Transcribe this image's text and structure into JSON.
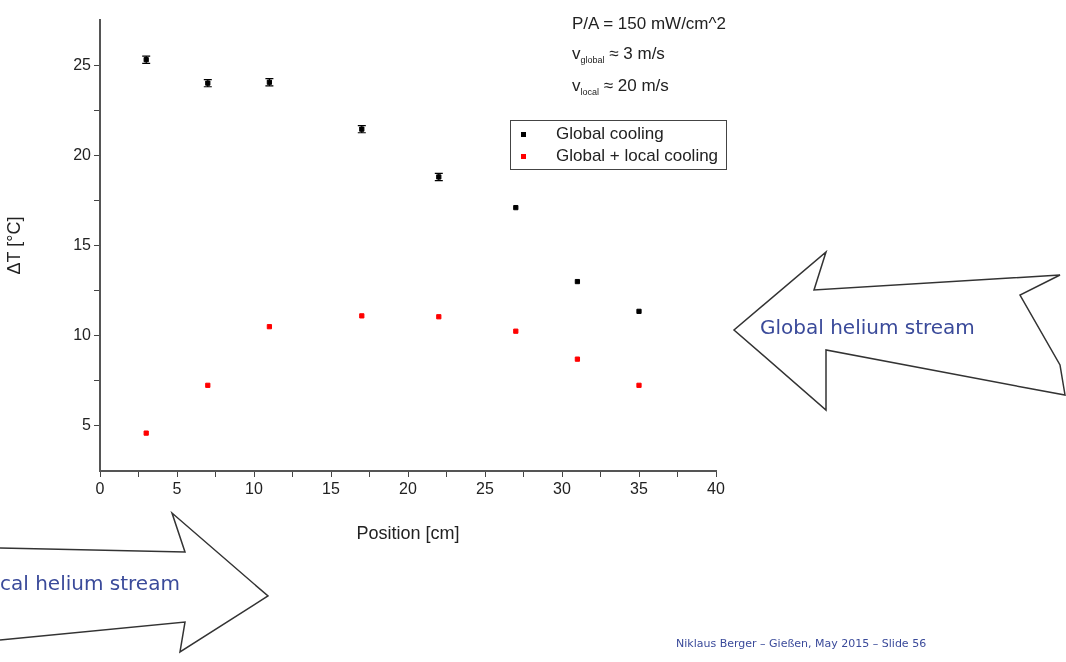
{
  "chart_data": {
    "type": "scatter",
    "xlabel": "Position [cm]",
    "ylabel": "ΔT [°C]",
    "x": [
      3,
      7,
      11,
      17,
      22,
      27,
      31,
      35
    ],
    "series": [
      {
        "name": "Global cooling",
        "color": "#000000",
        "values": [
          25.3,
          24.0,
          24.05,
          21.45,
          18.8,
          17.1,
          13.0,
          11.35
        ],
        "errors": [
          0.2,
          0.2,
          0.2,
          0.2,
          0.2,
          null,
          null,
          null
        ]
      },
      {
        "name": "Global + local cooling",
        "color": "#ff0000",
        "values": [
          4.6,
          7.25,
          10.5,
          11.1,
          11.05,
          10.25,
          8.7,
          7.25
        ]
      }
    ],
    "xlim": [
      0,
      40
    ],
    "xticks": [
      0,
      {
        "value": 2.5,
        "label": null
      },
      5,
      {
        "value": 7.5,
        "label": null
      },
      10,
      {
        "value": 12.5,
        "label": null
      },
      15,
      {
        "value": 17.5,
        "label": null
      },
      20,
      {
        "value": 22.5,
        "label": null
      },
      25,
      {
        "value": 27.5,
        "label": null
      },
      30,
      {
        "value": 32.5,
        "label": null
      },
      35,
      {
        "value": 37.5,
        "label": null
      },
      40
    ],
    "ylim": [
      2.5,
      27.5
    ],
    "yticks": [
      5,
      {
        "value": 7.5,
        "label": null
      },
      10,
      {
        "value": 12.5,
        "label": null
      },
      15,
      {
        "value": 17.5,
        "label": null
      },
      20,
      {
        "value": 22.5,
        "label": null
      },
      25
    ],
    "grid": false,
    "legend": "top right",
    "marker": "square",
    "annotations": [
      "P/A = 150 mW/cm^2",
      "v$_{global}$ ≈ 3 m/s",
      "v$_{local}$ ≈ 20 m/s",
      "Global helium stream",
      "cal helium stream",
      "Niklaus Berger – Gießen, May 2015 – Slide 56"
    ]
  }
}
